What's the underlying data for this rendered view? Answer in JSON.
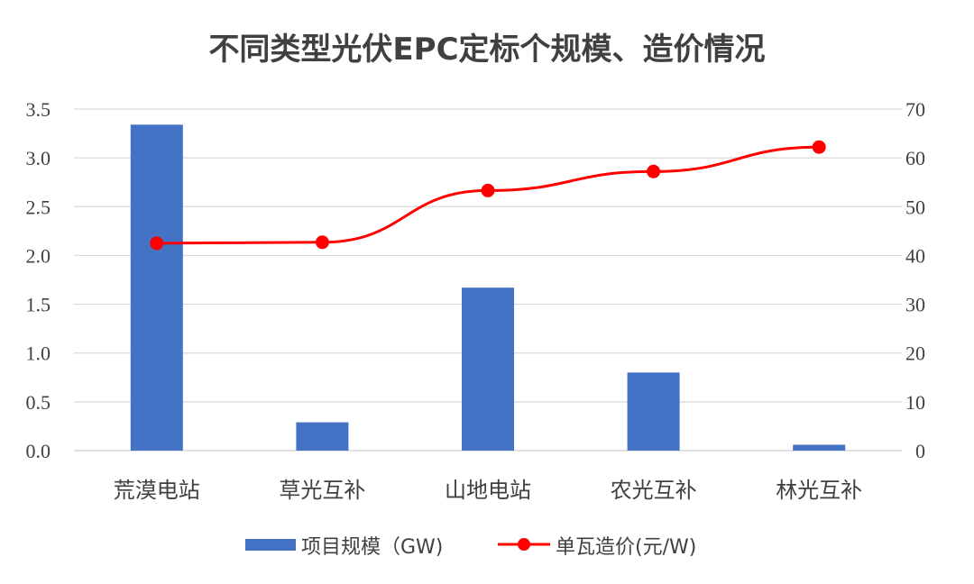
{
  "chart_data": {
    "type": "bar+line",
    "title": "不同类型光伏EPC定标个规模、造价情况",
    "categories": [
      "荒漠电站",
      "草光互补",
      "山地电站",
      "农光互补",
      "林光互补"
    ],
    "series": [
      {
        "name": "项目规模（GW)",
        "type": "bar",
        "axis": "left",
        "color": "#4472C4",
        "values": [
          3.34,
          0.29,
          1.67,
          0.8,
          0.06
        ]
      },
      {
        "name": "单瓦造价(元/W)",
        "type": "line",
        "axis": "right",
        "color": "#FF0000",
        "values": [
          42.5,
          42.7,
          53.3,
          57.2,
          62.2
        ]
      }
    ],
    "y_left": {
      "min": 0,
      "max": 3.5,
      "step": 0.5,
      "tick_labels": [
        "0.0",
        "0.5",
        "1.0",
        "1.5",
        "2.0",
        "2.5",
        "3.0",
        "3.5"
      ]
    },
    "y_right": {
      "min": 0,
      "max": 70,
      "step": 10,
      "tick_labels": [
        "0",
        "10",
        "20",
        "30",
        "40",
        "50",
        "60",
        "70"
      ]
    },
    "grid": true,
    "legend_position": "bottom"
  }
}
